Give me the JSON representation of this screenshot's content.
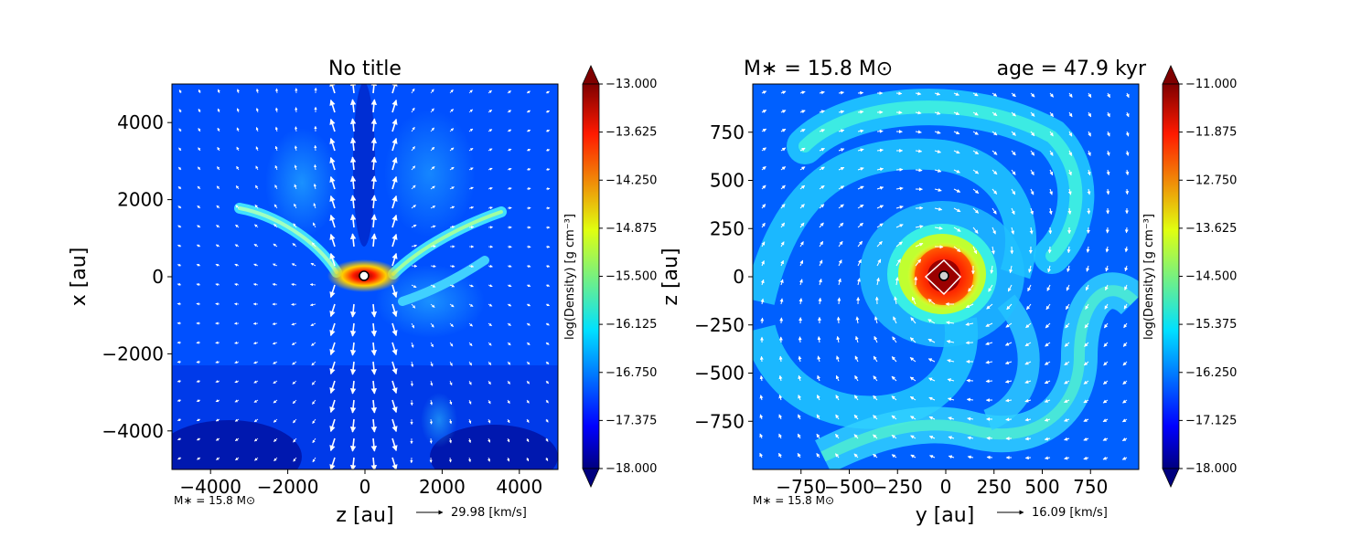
{
  "chart_data": [
    {
      "type": "heatmap",
      "title": "No title",
      "xlabel": "z [au]",
      "ylabel": "x [au]",
      "xlim": [
        -5000,
        5000
      ],
      "ylim": [
        -5000,
        5000
      ],
      "x_ticks": [
        -4000,
        -2000,
        0,
        2000,
        4000
      ],
      "y_ticks": [
        -4000,
        -2000,
        0,
        2000,
        4000
      ],
      "x_tick_labels": [
        "−4000",
        "−2000",
        "0",
        "2000",
        "4000"
      ],
      "y_tick_labels": [
        "−4000",
        "−2000",
        "0",
        "2000",
        "4000"
      ],
      "colorbar": {
        "label": "log(Density) [g cm⁻³]",
        "min": -18.0,
        "max": -13.0,
        "ticks": [
          "−13.000",
          "−13.625",
          "−14.250",
          "−14.875",
          "−15.500",
          "−16.125",
          "−16.750",
          "−17.375",
          "−18.000"
        ],
        "extend": "both"
      },
      "footnote": "M∗ = 15.8 M⊙",
      "quiver_key_label": "29.98 [km/s]",
      "colormap": "jet"
    },
    {
      "type": "heatmap",
      "title_left": "M∗ = 15.8 M⊙",
      "title_right": "age = 47.9 kyr",
      "xlabel": "y [au]",
      "ylabel": "z [au]",
      "xlim": [
        -1000,
        1000
      ],
      "ylim": [
        -1000,
        1000
      ],
      "x_ticks": [
        -750,
        -500,
        -250,
        0,
        250,
        500,
        750
      ],
      "y_ticks": [
        -750,
        -500,
        -250,
        0,
        250,
        500,
        750
      ],
      "x_tick_labels": [
        "−750",
        "−500",
        "−250",
        "0",
        "250",
        "500",
        "750"
      ],
      "y_tick_labels": [
        "−750",
        "−500",
        "−250",
        "0",
        "250",
        "500",
        "750"
      ],
      "colorbar": {
        "label": "log(Density) [g cm⁻³]",
        "min": -18.0,
        "max": -11.0,
        "ticks": [
          "−11.000",
          "−11.875",
          "−12.750",
          "−13.625",
          "−14.500",
          "−15.375",
          "−16.250",
          "−17.125",
          "−18.000"
        ],
        "extend": "both"
      },
      "footnote": "M∗ = 15.8 M⊙",
      "quiver_key_label": "16.09 [km/s]",
      "colormap": "jet"
    }
  ]
}
